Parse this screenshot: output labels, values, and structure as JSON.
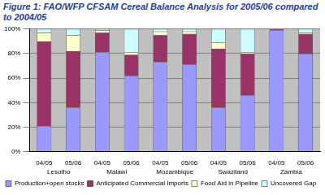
{
  "chart_data": {
    "type": "bar",
    "title": "Figure 1: FAO/WFP CFSAM Cereal Balance Analysis for 2005/06 compared to 2004/05",
    "categories": [
      "04/05",
      "05/06",
      "04/05",
      "05/06",
      "04/05",
      "05/06",
      "04/05",
      "05/06",
      "04/05",
      "05/06"
    ],
    "groups": [
      "Lesotho",
      "Malawi",
      "Mozambique",
      "Swaziland",
      "Zambia"
    ],
    "series": [
      {
        "name": "Production+open stocks",
        "color": "#9999ff",
        "values": [
          21,
          36,
          81,
          62,
          73,
          71,
          36,
          46,
          99,
          80
        ]
      },
      {
        "name": "Anticipated Commercial Imports",
        "color": "#993366",
        "values": [
          69,
          46,
          16,
          17,
          22,
          25,
          48,
          34,
          1,
          16
        ]
      },
      {
        "name": "Food Aid in Pipeline",
        "color": "#ffffcc",
        "values": [
          7,
          13,
          2,
          2,
          3,
          2,
          5,
          1,
          0,
          1
        ]
      },
      {
        "name": "Uncovered Gap",
        "color": "#ccffff",
        "values": [
          3,
          5,
          1,
          19,
          2,
          2,
          11,
          19,
          0,
          3
        ]
      }
    ],
    "stacked": true,
    "ylim": [
      0,
      100
    ],
    "yticks": [
      {
        "value": 0,
        "label": "0%"
      },
      {
        "value": 20,
        "label": "20%"
      },
      {
        "value": 40,
        "label": "40%"
      },
      {
        "value": 60,
        "label": "60%"
      },
      {
        "value": 80,
        "label": "80%"
      },
      {
        "value": 100,
        "label": "100%"
      }
    ],
    "grid": true,
    "legend": "bottom"
  }
}
